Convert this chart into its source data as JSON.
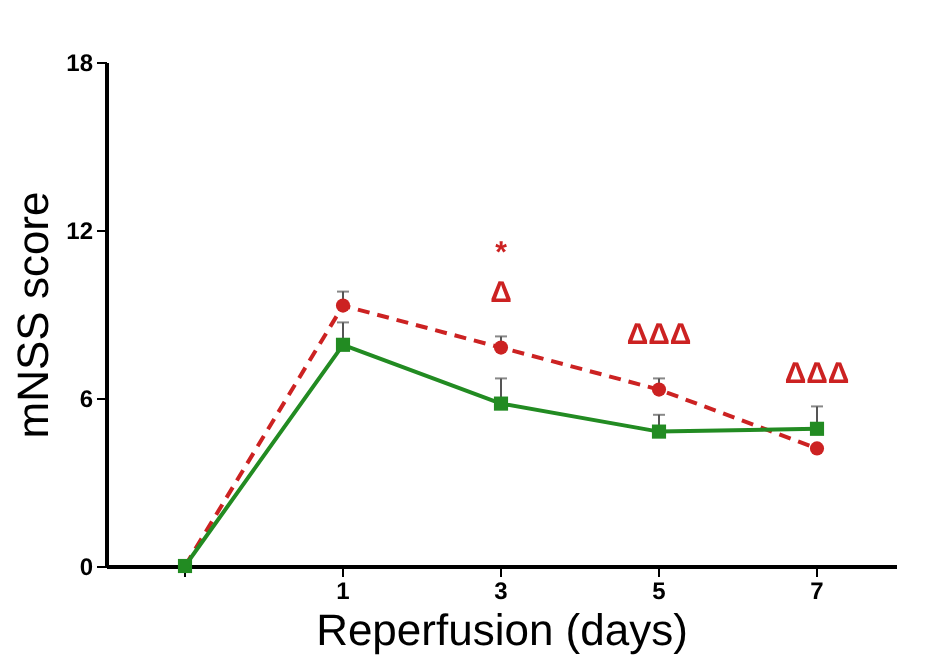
{
  "chart_data": {
    "type": "line",
    "xlabel": "Reperfusion (days)",
    "ylabel": "mNSS score",
    "categories": [
      null,
      "1",
      "3",
      "5",
      "7"
    ],
    "series": [
      {
        "color": "#cc2222",
        "marker": "circle",
        "line_style": "dashed",
        "values": [
          0,
          9.3,
          7.8,
          6.3,
          4.2
        ],
        "errors": [
          null,
          [
            9.3,
            9.8
          ],
          [
            7.8,
            8.2
          ],
          [
            6.3,
            6.7
          ],
          null
        ]
      },
      {
        "color": "#228b22",
        "marker": "square",
        "line_style": "solid",
        "values": [
          0,
          7.9,
          5.8,
          4.8,
          4.9
        ],
        "errors": [
          null,
          [
            7.9,
            8.7
          ],
          [
            5.8,
            6.7
          ],
          [
            4.8,
            5.4
          ],
          [
            4.9,
            5.7
          ]
        ]
      }
    ],
    "ylim": [
      0,
      18
    ],
    "yticks": [
      0,
      6,
      12,
      18
    ],
    "grid": false,
    "annotations": [
      {
        "text": "Δ",
        "x": "3",
        "y": 7.8
      },
      {
        "text": "*",
        "x": "3",
        "y": 7.8
      },
      {
        "text": "ΔΔΔ",
        "x": "5",
        "y": 6.3
      },
      {
        "text": "ΔΔΔ",
        "x": "7",
        "y": 4.9
      }
    ]
  }
}
